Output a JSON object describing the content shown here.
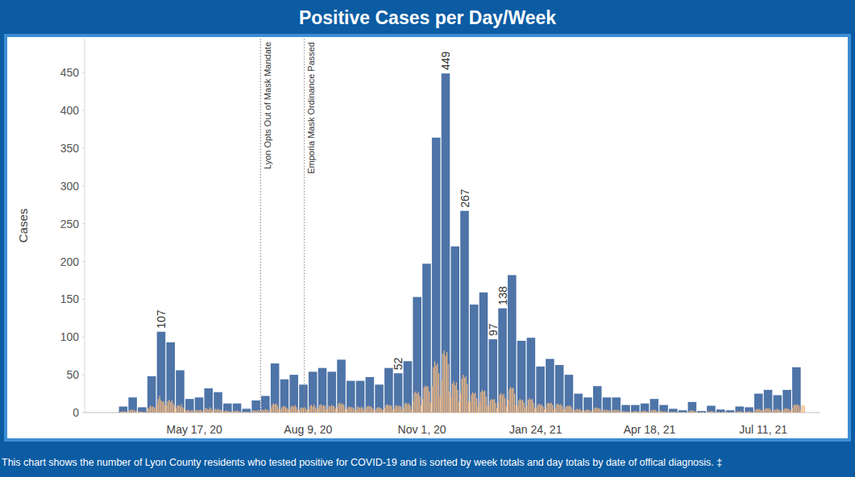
{
  "chart_data": {
    "type": "bar",
    "title": "Positive Cases per Day/Week",
    "caption": "This chart shows the number of Lyon County residents who tested positive for COVID-19 and is sorted by week totals and day totals by date of offical diagnosis. ‡",
    "y_label": "Cases",
    "categories": [
      null,
      null,
      null,
      null,
      null,
      null,
      null,
      null,
      "May 17, 20",
      null,
      null,
      null,
      null,
      null,
      null,
      null,
      null,
      null,
      null,
      null,
      "Aug 9, 20",
      null,
      null,
      null,
      null,
      null,
      null,
      null,
      null,
      null,
      null,
      null,
      "Nov 1, 20",
      null,
      null,
      null,
      null,
      null,
      null,
      null,
      null,
      null,
      null,
      null,
      "Jan 24, 21",
      null,
      null,
      null,
      null,
      null,
      null,
      null,
      null,
      null,
      null,
      null,
      "Apr 18, 21",
      null,
      null,
      null,
      null,
      null,
      null,
      null,
      null,
      null,
      null,
      null,
      "Jul 11, 21",
      null,
      null,
      null,
      null
    ],
    "series": [
      {
        "type": "bar",
        "color": "#4e74a8",
        "values": [
          8,
          20,
          7,
          48,
          107,
          93,
          56,
          18,
          20,
          32,
          27,
          12,
          12,
          5,
          16,
          22,
          65,
          44,
          50,
          37,
          54,
          59,
          54,
          70,
          42,
          42,
          47,
          37,
          59,
          52,
          68,
          153,
          197,
          364,
          449,
          220,
          267,
          143,
          159,
          97,
          138,
          182,
          95,
          99,
          61,
          71,
          63,
          50,
          25,
          20,
          35,
          20,
          20,
          10,
          10,
          12,
          18,
          10,
          5,
          3,
          14,
          2,
          9,
          4,
          3,
          8,
          7,
          25,
          30,
          23,
          30,
          60,
          null
        ],
        "value_labels": [
          null,
          null,
          null,
          null,
          "107",
          null,
          null,
          null,
          null,
          null,
          null,
          null,
          null,
          null,
          null,
          null,
          null,
          null,
          null,
          null,
          null,
          null,
          null,
          null,
          null,
          null,
          null,
          null,
          null,
          "52",
          null,
          null,
          null,
          null,
          "449",
          null,
          "267",
          null,
          null,
          "97",
          "138",
          null,
          null,
          null,
          null,
          null,
          null,
          null,
          null,
          null,
          null,
          null,
          null,
          null,
          null,
          null,
          null,
          null,
          null,
          null,
          null,
          null,
          null,
          null,
          null,
          null,
          null,
          null,
          null,
          null,
          null,
          null,
          null
        ]
      },
      {
        "type": "bar",
        "color": "#f3b87f",
        "values": [
          [
            0,
            1,
            2,
            1,
            2,
            1,
            1
          ],
          [
            2,
            3,
            4,
            3,
            4,
            2,
            2
          ],
          [
            1,
            1,
            2,
            1,
            1,
            1,
            0
          ],
          [
            5,
            6,
            9,
            8,
            8,
            7,
            5
          ],
          [
            12,
            18,
            22,
            16,
            14,
            15,
            10
          ],
          [
            10,
            15,
            17,
            14,
            16,
            12,
            9
          ],
          [
            6,
            9,
            10,
            8,
            11,
            7,
            5
          ],
          [
            2,
            3,
            4,
            2,
            3,
            3,
            1
          ],
          [
            2,
            4,
            3,
            3,
            4,
            2,
            2
          ],
          [
            3,
            6,
            5,
            4,
            7,
            5,
            2
          ],
          [
            3,
            5,
            4,
            5,
            4,
            4,
            2
          ],
          [
            1,
            2,
            3,
            2,
            2,
            1,
            1
          ],
          [
            1,
            2,
            2,
            3,
            2,
            1,
            1
          ],
          [
            0,
            1,
            1,
            1,
            1,
            1,
            0
          ],
          [
            1,
            3,
            3,
            2,
            3,
            3,
            1
          ],
          [
            2,
            4,
            3,
            5,
            4,
            3,
            1
          ],
          [
            6,
            10,
            12,
            11,
            12,
            9,
            5
          ],
          [
            4,
            7,
            8,
            9,
            7,
            6,
            3
          ],
          [
            5,
            8,
            9,
            8,
            10,
            7,
            3
          ],
          [
            3,
            6,
            7,
            6,
            7,
            5,
            3
          ],
          [
            5,
            9,
            10,
            8,
            11,
            7,
            4
          ],
          [
            6,
            10,
            11,
            9,
            10,
            9,
            4
          ],
          [
            5,
            9,
            8,
            10,
            9,
            8,
            5
          ],
          [
            7,
            12,
            13,
            11,
            12,
            10,
            5
          ],
          [
            4,
            7,
            8,
            7,
            7,
            6,
            3
          ],
          [
            4,
            8,
            7,
            6,
            8,
            6,
            3
          ],
          [
            5,
            8,
            9,
            8,
            8,
            6,
            3
          ],
          [
            3,
            6,
            7,
            7,
            6,
            5,
            3
          ],
          [
            6,
            10,
            11,
            9,
            10,
            9,
            4
          ],
          [
            5,
            9,
            10,
            8,
            9,
            8,
            3
          ],
          [
            7,
            12,
            13,
            11,
            12,
            9,
            4
          ],
          [
            15,
            26,
            28,
            25,
            27,
            22,
            10
          ],
          [
            18,
            33,
            36,
            34,
            35,
            28,
            13
          ],
          [
            35,
            60,
            68,
            62,
            65,
            52,
            22
          ],
          [
            42,
            78,
            82,
            75,
            80,
            64,
            28
          ],
          [
            20,
            38,
            42,
            36,
            40,
            30,
            14
          ],
          [
            25,
            45,
            50,
            46,
            48,
            38,
            15
          ],
          [
            14,
            24,
            27,
            25,
            26,
            19,
            8
          ],
          [
            15,
            27,
            30,
            28,
            29,
            21,
            9
          ],
          [
            9,
            16,
            18,
            17,
            18,
            13,
            6
          ],
          [
            13,
            24,
            26,
            23,
            25,
            19,
            8
          ],
          [
            17,
            31,
            34,
            32,
            33,
            25,
            10
          ],
          [
            9,
            16,
            18,
            16,
            17,
            13,
            6
          ],
          [
            9,
            17,
            19,
            17,
            18,
            13,
            6
          ],
          [
            6,
            10,
            12,
            10,
            11,
            8,
            4
          ],
          [
            7,
            12,
            13,
            12,
            13,
            10,
            4
          ],
          [
            6,
            11,
            12,
            10,
            11,
            9,
            4
          ],
          [
            5,
            8,
            9,
            9,
            9,
            7,
            3
          ],
          [
            2,
            4,
            5,
            4,
            5,
            3,
            2
          ],
          [
            2,
            3,
            4,
            4,
            3,
            3,
            1
          ],
          [
            3,
            6,
            7,
            6,
            6,
            5,
            2
          ],
          [
            2,
            4,
            3,
            4,
            3,
            3,
            1
          ],
          [
            2,
            3,
            4,
            3,
            4,
            3,
            1
          ],
          [
            1,
            2,
            2,
            1,
            2,
            1,
            1
          ],
          [
            1,
            1,
            2,
            2,
            2,
            1,
            1
          ],
          [
            1,
            2,
            2,
            3,
            2,
            1,
            1
          ],
          [
            2,
            3,
            3,
            4,
            3,
            2,
            1
          ],
          [
            1,
            2,
            2,
            1,
            2,
            1,
            1
          ],
          [
            0,
            1,
            1,
            1,
            1,
            1,
            0
          ],
          [
            0,
            1,
            0,
            1,
            1,
            0,
            0
          ],
          [
            1,
            2,
            3,
            3,
            2,
            2,
            1
          ],
          [
            0,
            0,
            1,
            0,
            1,
            0,
            0
          ],
          [
            1,
            2,
            1,
            2,
            2,
            1,
            0
          ],
          [
            0,
            1,
            1,
            0,
            1,
            1,
            0
          ],
          [
            0,
            1,
            0,
            1,
            0,
            1,
            0
          ],
          [
            1,
            1,
            2,
            1,
            2,
            1,
            0
          ],
          [
            1,
            1,
            1,
            2,
            1,
            1,
            0
          ],
          [
            2,
            4,
            5,
            4,
            5,
            3,
            2
          ],
          [
            3,
            5,
            6,
            5,
            6,
            4,
            1
          ],
          [
            2,
            4,
            4,
            5,
            4,
            3,
            1
          ],
          [
            3,
            5,
            6,
            5,
            5,
            4,
            2
          ],
          [
            6,
            10,
            11,
            10,
            11,
            9,
            3
          ],
          [
            9,
            10,
            9
          ]
        ]
      }
    ],
    "annotations": [
      {
        "text": "Lyon Opts Out of Mask Mandate",
        "x": 15
      },
      {
        "text": "Emporia Mask Ordinance Passed",
        "x": 19.6
      }
    ],
    "ylim": [
      0,
      495
    ],
    "yticks": [
      0,
      50,
      100,
      150,
      200,
      250,
      300,
      350,
      400,
      450
    ],
    "grid": false,
    "data_labels": true
  }
}
